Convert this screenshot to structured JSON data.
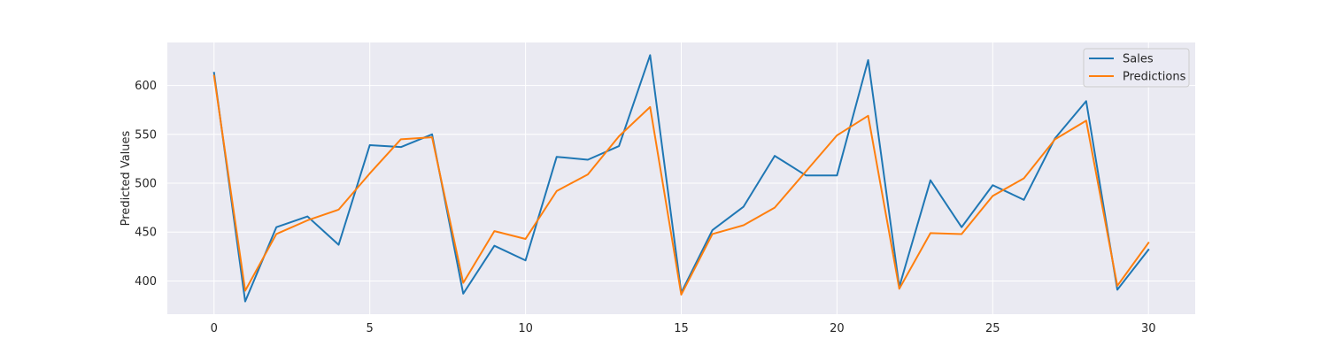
{
  "chart_data": {
    "type": "line",
    "title": "",
    "xlabel": "",
    "ylabel": "Predicted Values",
    "xlim": [
      -1.5,
      31.5
    ],
    "ylim": [
      366,
      644
    ],
    "x_ticks": [
      0,
      5,
      10,
      15,
      20,
      25,
      30
    ],
    "y_ticks": [
      400,
      450,
      500,
      550,
      600
    ],
    "grid": true,
    "legend_position": "top-right",
    "x": [
      0,
      1,
      2,
      3,
      4,
      5,
      6,
      7,
      8,
      9,
      10,
      11,
      12,
      13,
      14,
      15,
      16,
      17,
      18,
      19,
      20,
      21,
      22,
      23,
      24,
      25,
      26,
      27,
      28,
      29,
      30
    ],
    "series": [
      {
        "name": "Sales",
        "color": "#1f77b4",
        "values": [
          613,
          379,
          455,
          466,
          437,
          539,
          537,
          550,
          387,
          436,
          421,
          527,
          524,
          538,
          631,
          388,
          452,
          476,
          528,
          508,
          508,
          626,
          394,
          503,
          455,
          498,
          483,
          546,
          584,
          391,
          432
        ]
      },
      {
        "name": "Predictions",
        "color": "#ff7f0e",
        "values": [
          610,
          390,
          448,
          462,
          473,
          510,
          545,
          547,
          398,
          451,
          443,
          492,
          509,
          548,
          578,
          386,
          448,
          457,
          475,
          512,
          549,
          569,
          392,
          449,
          448,
          487,
          505,
          545,
          564,
          395,
          439
        ]
      }
    ],
    "background_color": "#eaeaf2",
    "grid_color": "#ffffff"
  }
}
